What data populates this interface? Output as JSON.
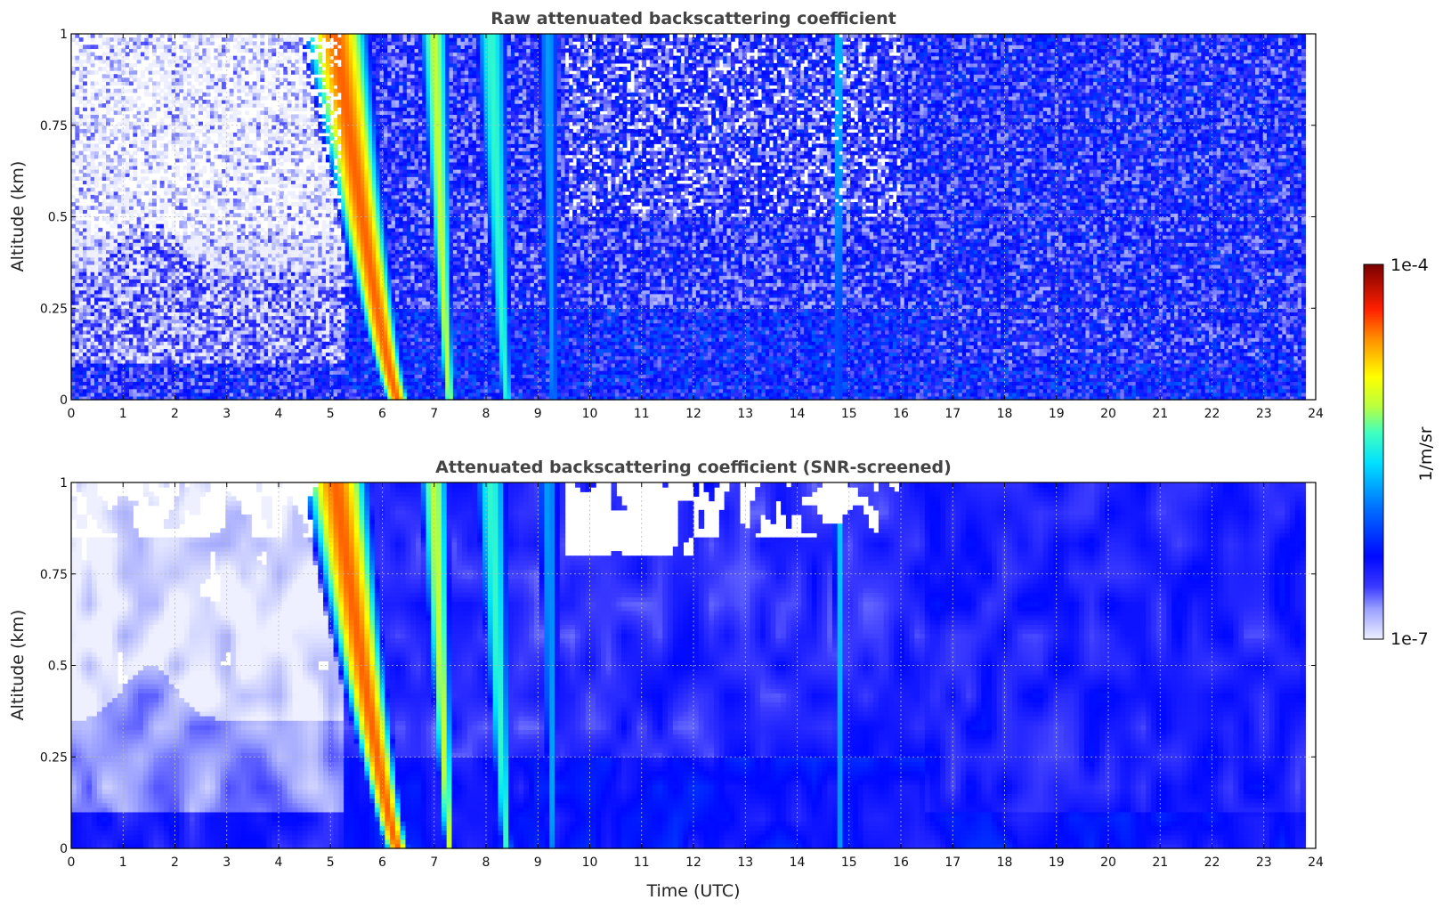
{
  "chart_data": [
    {
      "type": "heatmap",
      "title": "Raw attenuated backscattering coefficient",
      "xlabel": "",
      "ylabel": "Altitude (km)",
      "xlim": [
        0,
        24
      ],
      "ylim": [
        0,
        1
      ],
      "x_ticks": [
        "0",
        "1",
        "2",
        "3",
        "4",
        "5",
        "6",
        "7",
        "8",
        "9",
        "10",
        "11",
        "12",
        "13",
        "14",
        "15",
        "16",
        "17",
        "18",
        "19",
        "20",
        "21",
        "22",
        "23",
        "24"
      ],
      "y_ticks": [
        "0",
        "0.25",
        "0.5",
        "0.75",
        "1"
      ],
      "data_end_x": 23.8,
      "grid": true,
      "screened": false,
      "features": [
        {
          "name": "fog-plume-1",
          "x_at_top": 5.1,
          "x_at_bottom": 6.3,
          "width_hours": 0.9,
          "peak_log10": -4.5
        },
        {
          "name": "fog-plume-2",
          "x_at_top": 7.0,
          "x_at_bottom": 7.3,
          "width_hours": 0.45,
          "peak_log10": -5.1
        },
        {
          "name": "fog-plume-3",
          "x_at_top": 8.1,
          "x_at_bottom": 8.4,
          "width_hours": 0.55,
          "peak_log10": -5.4
        },
        {
          "name": "fog-plume-4",
          "x_at_top": 9.2,
          "x_at_bottom": 9.3,
          "width_hours": 0.45,
          "peak_log10": -5.8
        },
        {
          "name": "cloud-streak-15h",
          "x_at_top": 14.8,
          "x_at_bottom": 14.8,
          "width_hours": 0.2,
          "peak_log10": -5.6
        }
      ]
    },
    {
      "type": "heatmap",
      "title": "Attenuated backscattering coefficient (SNR-screened)",
      "xlabel": "Time (UTC)",
      "ylabel": "Altitude (km)",
      "xlim": [
        0,
        24
      ],
      "ylim": [
        0,
        1
      ],
      "x_ticks": [
        "0",
        "1",
        "2",
        "3",
        "4",
        "5",
        "6",
        "7",
        "8",
        "9",
        "10",
        "11",
        "12",
        "13",
        "14",
        "15",
        "16",
        "17",
        "18",
        "19",
        "20",
        "21",
        "22",
        "23",
        "24"
      ],
      "y_ticks": [
        "0",
        "0.25",
        "0.5",
        "0.75",
        "1"
      ],
      "data_end_x": 23.8,
      "grid": true,
      "screened": true,
      "features": [
        {
          "name": "fog-plume-1",
          "x_at_top": 5.1,
          "x_at_bottom": 6.3,
          "width_hours": 0.9,
          "peak_log10": -4.5
        },
        {
          "name": "fog-plume-2",
          "x_at_top": 7.0,
          "x_at_bottom": 7.3,
          "width_hours": 0.45,
          "peak_log10": -5.1
        },
        {
          "name": "fog-plume-3",
          "x_at_top": 8.1,
          "x_at_bottom": 8.4,
          "width_hours": 0.55,
          "peak_log10": -5.4
        },
        {
          "name": "fog-plume-4",
          "x_at_top": 9.2,
          "x_at_bottom": 9.3,
          "width_hours": 0.45,
          "peak_log10": -5.8
        },
        {
          "name": "cloud-streak-15h",
          "x_at_top": 14.8,
          "x_at_bottom": 14.8,
          "width_hours": 0.2,
          "peak_log10": -5.6
        }
      ]
    }
  ],
  "colorbar": {
    "label": "1/m/sr",
    "max_label": "1e-4",
    "min_label": "1e-7",
    "log_range": [
      -7,
      -4
    ],
    "colormap": "jet"
  }
}
